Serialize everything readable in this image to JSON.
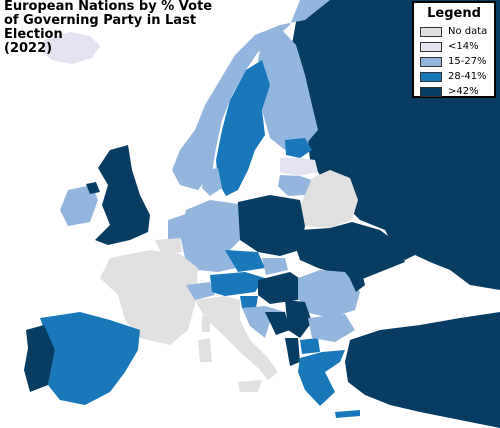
{
  "title": "European Nations by % Vote\nof Governing Party in Last Election\n(2022)",
  "legend": {
    "title": "Legend",
    "items": [
      {
        "label": "No data",
        "color": "#e0e0e0"
      },
      {
        "label": "<14%",
        "color": "#e2e2f0"
      },
      {
        "label": "15-27%",
        "color": "#93b6de"
      },
      {
        "label": "28-41%",
        "color": "#1878b9"
      },
      {
        "label": ">42%",
        "color": "#073d63"
      }
    ]
  },
  "colors": {
    "sea": "#ffffff",
    "border": "#ffffff"
  }
}
